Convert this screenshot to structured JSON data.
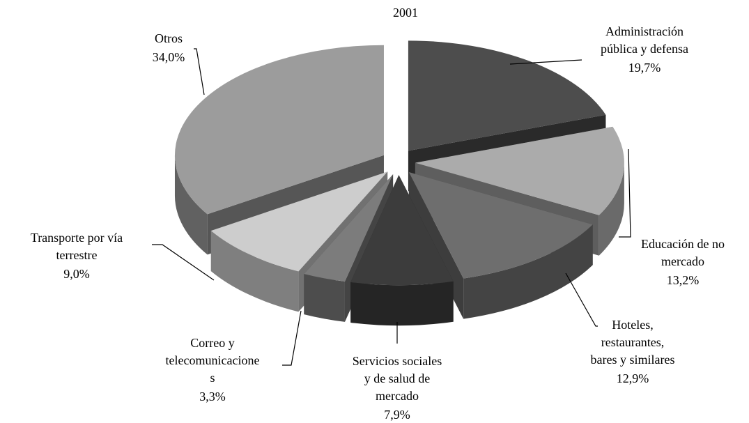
{
  "chart_data": {
    "type": "pie",
    "title": "2001",
    "categories": [
      [
        "Administración",
        "pública y defensa"
      ],
      [
        "Educación de no",
        "mercado"
      ],
      [
        "Hoteles,",
        "restaurantes,",
        "bares y similares"
      ],
      [
        "Servicios sociales",
        "y de salud de",
        "mercado"
      ],
      [
        "Correo  y",
        "telecomunicacione",
        "s"
      ],
      [
        "Transporte por vía",
        "terrestre"
      ],
      [
        "Otros"
      ]
    ],
    "values": [
      19.7,
      13.2,
      12.9,
      7.9,
      3.3,
      9.0,
      34.0
    ],
    "value_labels": [
      "19,7%",
      "13,2%",
      "12,9%",
      "7,9%",
      "3,3%",
      "9,0%",
      "34,0%"
    ],
    "colors": [
      "#4d4d4d",
      "#ababab",
      "#6e6e6e",
      "#3c3c3c",
      "#7c7c7c",
      "#cdcdcd",
      "#9c9c9c"
    ]
  }
}
